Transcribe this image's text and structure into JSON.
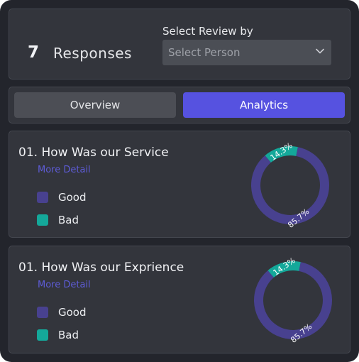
{
  "header": {
    "count": "7",
    "count_label": "Responses",
    "select_label": "Select Review by",
    "select_value": "Select Person",
    "select_icon": "chevron-down-icon"
  },
  "tabs": [
    {
      "label": "Overview",
      "active": false
    },
    {
      "label": "Analytics",
      "active": true
    }
  ],
  "colors": {
    "good": "#48418f",
    "bad": "#14a89a",
    "accent": "#5652e0",
    "link": "#5e5cd8"
  },
  "questions": [
    {
      "title": "01. How Was our Service",
      "more_label": "More Detail",
      "legend": [
        {
          "label": "Good"
        },
        {
          "label": "Bad"
        }
      ],
      "chart_data": {
        "type": "pie",
        "donut": true,
        "categories": [
          "Good",
          "Bad"
        ],
        "values": [
          85.7,
          14.3
        ],
        "labels": [
          "85.7%",
          "14.3%"
        ]
      }
    },
    {
      "title": "01. How Was our Exprience",
      "more_label": "More Detail",
      "legend": [
        {
          "label": "Good"
        },
        {
          "label": "Bad"
        }
      ],
      "chart_data": {
        "type": "pie",
        "donut": true,
        "categories": [
          "Good",
          "Bad"
        ],
        "values": [
          85.7,
          14.3
        ],
        "labels": [
          "85.7%",
          "14.3%"
        ]
      }
    }
  ]
}
